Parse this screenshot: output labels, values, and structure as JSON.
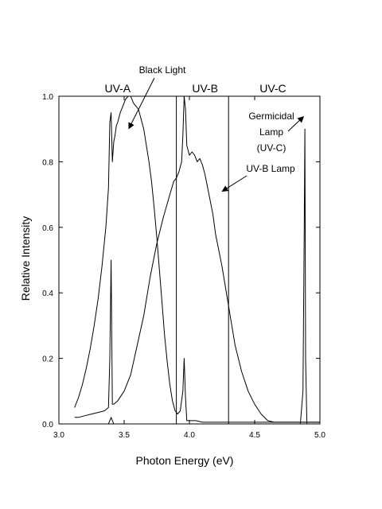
{
  "chart_data": {
    "type": "line",
    "xlabel": "Photon Energy (eV)",
    "ylabel": "Relative Intensity",
    "xlim": [
      3.0,
      5.0
    ],
    "ylim": [
      0.0,
      1.0
    ],
    "grid": false,
    "x_ticks": [
      "3.0",
      "3.5",
      "4.0",
      "4.5",
      "5.0"
    ],
    "y_ticks": [
      "0.0",
      "0.2",
      "0.4",
      "0.6",
      "0.8",
      "1.0"
    ],
    "bands": [
      {
        "label": "UV-A",
        "from": 3.0,
        "to": 3.9
      },
      {
        "label": "UV-B",
        "from": 3.9,
        "to": 4.3
      },
      {
        "label": "UV-C",
        "from": 4.3,
        "to": 5.0
      }
    ],
    "band_boundaries": [
      3.9,
      4.3
    ],
    "series": [
      {
        "name": "Black Light",
        "x": [
          3.12,
          3.15,
          3.18,
          3.21,
          3.24,
          3.27,
          3.3,
          3.33,
          3.36,
          3.38,
          3.39,
          3.4,
          3.41,
          3.42,
          3.43,
          3.44,
          3.45,
          3.47,
          3.49,
          3.51,
          3.53,
          3.55,
          3.57,
          3.59,
          3.61,
          3.63,
          3.65,
          3.67,
          3.69,
          3.71,
          3.73,
          3.75,
          3.77,
          3.79,
          3.81,
          3.83,
          3.85,
          3.87,
          3.89,
          3.91,
          3.93,
          3.95,
          3.96,
          3.97,
          3.98,
          4.0,
          4.05,
          4.1,
          4.2,
          4.3,
          4.4,
          4.5,
          4.6,
          4.7,
          4.8,
          4.9,
          5.0
        ],
        "values": [
          0.05,
          0.08,
          0.12,
          0.17,
          0.23,
          0.3,
          0.38,
          0.48,
          0.6,
          0.72,
          0.92,
          0.95,
          0.8,
          0.86,
          0.88,
          0.91,
          0.92,
          0.95,
          0.97,
          0.99,
          1.0,
          1.0,
          0.98,
          0.97,
          0.96,
          0.93,
          0.9,
          0.85,
          0.8,
          0.74,
          0.66,
          0.57,
          0.47,
          0.37,
          0.27,
          0.19,
          0.12,
          0.07,
          0.04,
          0.03,
          0.04,
          0.1,
          0.2,
          0.08,
          0.01,
          0.01,
          0.01,
          0.005,
          0.005,
          0.005,
          0.005,
          0.005,
          0.005,
          0.005,
          0.005,
          0.005,
          0.005
        ]
      },
      {
        "name": "UV-B Lamp",
        "x": [
          3.12,
          3.15,
          3.2,
          3.25,
          3.3,
          3.35,
          3.38,
          3.39,
          3.4,
          3.41,
          3.42,
          3.45,
          3.5,
          3.55,
          3.6,
          3.65,
          3.7,
          3.75,
          3.8,
          3.85,
          3.88,
          3.9,
          3.92,
          3.94,
          3.95,
          3.96,
          3.97,
          3.98,
          4.0,
          4.02,
          4.04,
          4.06,
          4.08,
          4.1,
          4.12,
          4.15,
          4.18,
          4.2,
          4.25,
          4.3,
          4.35,
          4.4,
          4.45,
          4.5,
          4.55,
          4.6,
          4.65,
          4.7,
          4.75,
          4.8,
          4.85,
          4.87,
          4.88,
          4.89,
          4.9,
          4.95,
          5.0
        ],
        "values": [
          0.02,
          0.02,
          0.025,
          0.03,
          0.035,
          0.04,
          0.05,
          0.2,
          0.5,
          0.06,
          0.06,
          0.07,
          0.1,
          0.15,
          0.24,
          0.33,
          0.45,
          0.55,
          0.63,
          0.7,
          0.74,
          0.75,
          0.77,
          0.8,
          0.88,
          1.0,
          0.96,
          0.85,
          0.82,
          0.83,
          0.82,
          0.8,
          0.81,
          0.79,
          0.76,
          0.7,
          0.64,
          0.58,
          0.48,
          0.36,
          0.24,
          0.16,
          0.1,
          0.06,
          0.03,
          0.01,
          0.005,
          0.005,
          0.005,
          0.005,
          0.005,
          0.005,
          0.005,
          0.005,
          0.005,
          0.005,
          0.005
        ]
      },
      {
        "name": "Germicidal Lamp (UV-C)",
        "x": [
          3.12,
          3.3,
          3.38,
          3.4,
          3.42,
          3.6,
          3.9,
          4.0,
          4.3,
          4.6,
          4.85,
          4.87,
          4.88,
          4.885,
          4.89,
          4.9,
          4.95,
          5.0
        ],
        "values": [
          0.0,
          0.0,
          0.0,
          0.02,
          0.0,
          0.0,
          0.0,
          0.0,
          0.0,
          0.0,
          0.0,
          0.1,
          0.6,
          0.9,
          0.2,
          0.0,
          0.0,
          0.0
        ]
      }
    ],
    "annotations": [
      {
        "text": "Black Light",
        "target_x": 3.53,
        "target_y": 0.95
      },
      {
        "text": "UV-B Lamp",
        "target_x": 4.24,
        "target_y": 0.71
      },
      {
        "lines": [
          "Germicidal",
          "Lamp",
          "(UV-C)"
        ],
        "target_x": 4.88,
        "target_y": 0.85
      }
    ]
  }
}
